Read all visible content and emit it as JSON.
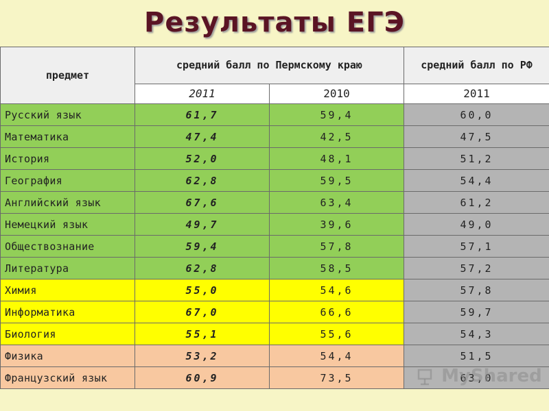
{
  "title": "Результаты ЕГЭ",
  "header": {
    "subject": "предмет",
    "perm_avg": "средний балл по Пермскому краю",
    "rf_avg": "средний балл по РФ",
    "years": [
      "2011",
      "2010",
      "2011"
    ]
  },
  "rows": [
    {
      "subject": "Русский язык",
      "perm_2011": "61,7",
      "perm_2010": "59,4",
      "rf_2011": "60,0",
      "group": "green"
    },
    {
      "subject": "Математика",
      "perm_2011": "47,4",
      "perm_2010": "42,5",
      "rf_2011": "47,5",
      "group": "green"
    },
    {
      "subject": "История",
      "perm_2011": "52,0",
      "perm_2010": "48,1",
      "rf_2011": "51,2",
      "group": "green"
    },
    {
      "subject": "География",
      "perm_2011": "62,8",
      "perm_2010": "59,5",
      "rf_2011": "54,4",
      "group": "green"
    },
    {
      "subject": "Английский язык",
      "perm_2011": "67,6",
      "perm_2010": "63,4",
      "rf_2011": "61,2",
      "group": "green"
    },
    {
      "subject": "Немецкий язык",
      "perm_2011": "49,7",
      "perm_2010": "39,6",
      "rf_2011": "49,0",
      "group": "green"
    },
    {
      "subject": "Обществознание",
      "perm_2011": "59,4",
      "perm_2010": "57,8",
      "rf_2011": "57,1",
      "group": "green"
    },
    {
      "subject": "Литература",
      "perm_2011": "62,8",
      "perm_2010": "58,5",
      "rf_2011": "57,2",
      "group": "green"
    },
    {
      "subject": "Химия",
      "perm_2011": "55,0",
      "perm_2010": "54,6",
      "rf_2011": "57,8",
      "group": "yellow"
    },
    {
      "subject": "Информатика",
      "perm_2011": "67,0",
      "perm_2010": "66,6",
      "rf_2011": "59,7",
      "group": "yellow"
    },
    {
      "subject": "Биология",
      "perm_2011": "55,1",
      "perm_2010": "55,6",
      "rf_2011": "54,3",
      "group": "yellow"
    },
    {
      "subject": "Физика",
      "perm_2011": "53,2",
      "perm_2010": "54,4",
      "rf_2011": "51,5",
      "group": "peach"
    },
    {
      "subject": "Французский язык",
      "perm_2011": "60,9",
      "perm_2010": "73,5",
      "rf_2011": "63,0",
      "group": "peach"
    }
  ],
  "colors": {
    "green": "#92cf58",
    "yellow": "#ffff00",
    "peach": "#f8c8a0",
    "rf": "#b4b4b4",
    "title": "#5a1424"
  },
  "watermark": "MyShared"
}
